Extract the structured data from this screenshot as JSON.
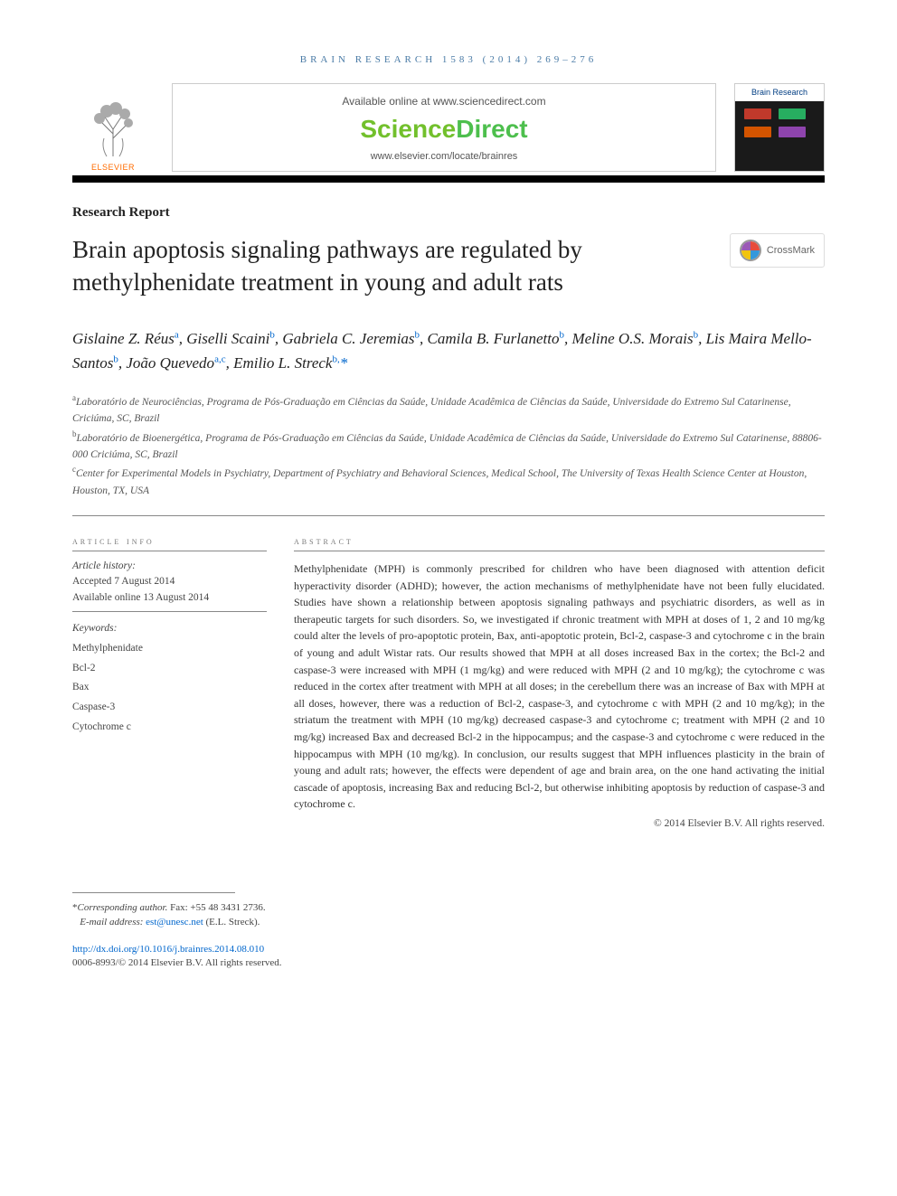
{
  "running_head": "BRAIN RESEARCH 1583 (2014) 269–276",
  "header": {
    "available_text": "Available online at www.sciencedirect.com",
    "sciencedirect": {
      "science": "Science",
      "direct": "Direct"
    },
    "journal_url": "www.elsevier.com/locate/brainres",
    "elsevier_label": "ELSEVIER",
    "cover_title": "Brain Research"
  },
  "crossmark_label": "CrossMark",
  "article_type": "Research Report",
  "title": "Brain apoptosis signaling pathways are regulated by methylphenidate treatment in young and adult rats",
  "authors_html": "Gislaine Z. Réus<sup>a</sup>, Giselli Scaini<sup>b</sup>, Gabriela C. Jeremias<sup>b</sup>, Camila B. Furlanetto<sup>b</sup>, Meline O.S. Morais<sup>b</sup>, Lis Maira Mello-Santos<sup>b</sup>, João Quevedo<sup>a,c</sup>, Emilio L. Streck<sup>b,</sup><span class=\"corr\">*</span>",
  "affiliations": [
    {
      "key": "a",
      "text": "Laboratório de Neurociências, Programa de Pós-Graduação em Ciências da Saúde, Unidade Acadêmica de Ciências da Saúde, Universidade do Extremo Sul Catarinense, Criciúma, SC, Brazil"
    },
    {
      "key": "b",
      "text": "Laboratório de Bioenergética, Programa de Pós-Graduação em Ciências da Saúde, Unidade Acadêmica de Ciências da Saúde, Universidade do Extremo Sul Catarinense, 88806-000 Criciúma, SC, Brazil"
    },
    {
      "key": "c",
      "text": "Center for Experimental Models in Psychiatry, Department of Psychiatry and Behavioral Sciences, Medical School, The University of Texas Health Science Center at Houston, Houston, TX, USA"
    }
  ],
  "info": {
    "section_label": "article info",
    "history_label": "Article history:",
    "accepted": "Accepted 7 August 2014",
    "online": "Available online 13 August 2014",
    "keywords_label": "Keywords:",
    "keywords": [
      "Methylphenidate",
      "Bcl-2",
      "Bax",
      "Caspase-3",
      "Cytochrome c"
    ]
  },
  "abstract": {
    "section_label": "abstract",
    "text": "Methylphenidate (MPH) is commonly prescribed for children who have been diagnosed with attention deficit hyperactivity disorder (ADHD); however, the action mechanisms of methylphenidate have not been fully elucidated. Studies have shown a relationship between apoptosis signaling pathways and psychiatric disorders, as well as in therapeutic targets for such disorders. So, we investigated if chronic treatment with MPH at doses of 1, 2 and 10 mg/kg could alter the levels of pro-apoptotic protein, Bax, anti-apoptotic protein, Bcl-2, caspase-3 and cytochrome c in the brain of young and adult Wistar rats. Our results showed that MPH at all doses increased Bax in the cortex; the Bcl-2 and caspase-3 were increased with MPH (1 mg/kg) and were reduced with MPH (2 and 10 mg/kg); the cytochrome c was reduced in the cortex after treatment with MPH at all doses; in the cerebellum there was an increase of Bax with MPH at all doses, however, there was a reduction of Bcl-2, caspase-3, and cytochrome c with MPH (2 and 10 mg/kg); in the striatum the treatment with MPH (10 mg/kg) decreased caspase-3 and cytochrome c; treatment with MPH (2 and 10 mg/kg) increased Bax and decreased Bcl-2 in the hippocampus; and the caspase-3 and cytochrome c were reduced in the hippocampus with MPH (10 mg/kg). In conclusion, our results suggest that MPH influences plasticity in the brain of young and adult rats; however, the effects were dependent of age and brain area, on the one hand activating the initial cascade of apoptosis, increasing Bax and reducing Bcl-2, but otherwise inhibiting apoptosis by reduction of caspase-3 and cytochrome c.",
    "copyright": "© 2014 Elsevier B.V. All rights reserved."
  },
  "footer": {
    "corr_label": "Corresponding author.",
    "fax": "Fax: +55 48 3431 2736.",
    "email_label": "E-mail address:",
    "email": "est@unesc.net",
    "email_name": "(E.L. Streck).",
    "doi": "http://dx.doi.org/10.1016/j.brainres.2014.08.010",
    "issn_line": "0006-8993/© 2014 Elsevier B.V. All rights reserved."
  },
  "colors": {
    "link": "#0066cc",
    "elsevier_orange": "#ff6c00",
    "sd_green1": "#72c02c",
    "sd_green2": "#4dbf4d",
    "running_head": "#4a7ba6"
  }
}
